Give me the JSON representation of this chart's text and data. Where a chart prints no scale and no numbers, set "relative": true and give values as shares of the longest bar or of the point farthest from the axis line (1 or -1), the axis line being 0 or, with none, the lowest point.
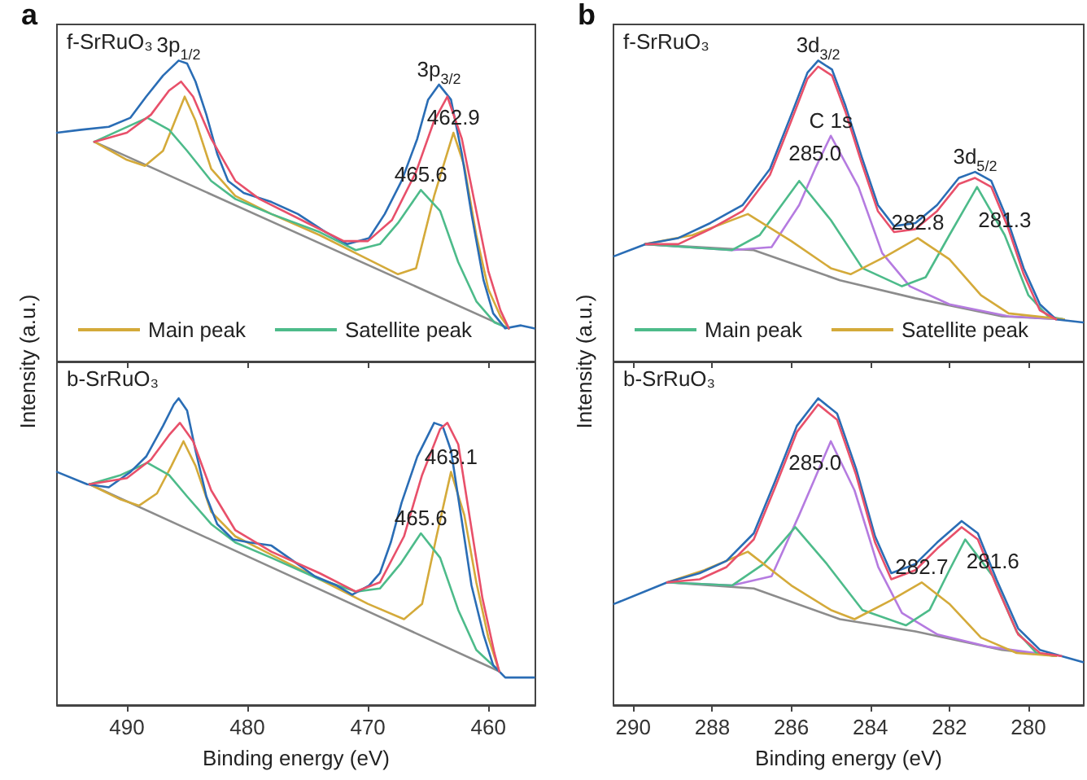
{
  "chart_data": [
    {
      "type": "line",
      "title": "a",
      "subtitle": "f-SrRuO₃",
      "relative": true,
      "xlim": [
        495.8,
        456.1
      ],
      "xticks": [
        490,
        480,
        470,
        460
      ],
      "tick_labels": false,
      "legend": "bottom left",
      "series": [
        {
          "color": "#8c8c8c",
          "x": [
            492.7,
            458.3
          ],
          "values": [
            0.73,
            0.11
          ]
        },
        {
          "name": "Main peak",
          "color": "#d4aa3a",
          "x": [
            492.7,
            490,
            488.5,
            487,
            486,
            485.2,
            484.3,
            483,
            481,
            478,
            474,
            470,
            467.5,
            466,
            464.5,
            462.9,
            462,
            461,
            460,
            459,
            458.3
          ],
          "values": [
            0.73,
            0.67,
            0.65,
            0.7,
            0.8,
            0.88,
            0.8,
            0.64,
            0.55,
            0.49,
            0.42,
            0.34,
            0.29,
            0.31,
            0.55,
            0.76,
            0.65,
            0.42,
            0.24,
            0.15,
            0.11
          ]
        },
        {
          "name": "Satellite peak",
          "color": "#4dbb8a",
          "x": [
            492.7,
            490.5,
            488.3,
            486.5,
            485,
            483,
            481,
            478,
            474,
            471,
            469,
            467.5,
            465.6,
            464,
            462.5,
            461,
            459.5,
            458.3
          ],
          "values": [
            0.73,
            0.77,
            0.81,
            0.77,
            0.7,
            0.6,
            0.54,
            0.49,
            0.43,
            0.37,
            0.39,
            0.46,
            0.57,
            0.5,
            0.33,
            0.2,
            0.13,
            0.11
          ]
        },
        {
          "color": "#2a6db5",
          "x": [
            495.8,
            493.8,
            491.5,
            489.7,
            488.4,
            487.0,
            485.7,
            485.0,
            484.3,
            483.4,
            482.5,
            481.6,
            480.3,
            478.0,
            475.8,
            473.5,
            471.7,
            469.9,
            468.6,
            467.2,
            465.9,
            465.0,
            464.1,
            463.1,
            462.2,
            461.4,
            460.4,
            459.6,
            458.6,
            457.3,
            456.2
          ],
          "values": [
            0.76,
            0.77,
            0.78,
            0.81,
            0.88,
            0.95,
            1.0,
            0.99,
            0.93,
            0.82,
            0.69,
            0.6,
            0.56,
            0.53,
            0.49,
            0.43,
            0.39,
            0.41,
            0.49,
            0.6,
            0.74,
            0.87,
            0.92,
            0.87,
            0.69,
            0.49,
            0.27,
            0.16,
            0.11,
            0.12,
            0.11
          ]
        },
        {
          "color": "#e8506a",
          "x": [
            492.7,
            490,
            488,
            486.5,
            485.5,
            484.5,
            483,
            481,
            479,
            475,
            472,
            470,
            468,
            466,
            464.5,
            463.4,
            462.2,
            461,
            460,
            459,
            458.3
          ],
          "values": [
            0.73,
            0.76,
            0.82,
            0.9,
            0.93,
            0.88,
            0.74,
            0.6,
            0.54,
            0.46,
            0.4,
            0.4,
            0.47,
            0.63,
            0.8,
            0.88,
            0.74,
            0.5,
            0.3,
            0.17,
            0.11
          ]
        }
      ],
      "annotations": [
        {
          "text": "3p$_{1/2}$",
          "x": 485.7,
          "y": 1.0
        },
        {
          "text": "3p$_{3/2}$",
          "x": 464.1,
          "y": 0.92
        },
        {
          "text": "465.6",
          "x": 465.6,
          "y": 0.57
        },
        {
          "text": "462.9",
          "x": 462.9,
          "y": 0.76
        }
      ]
    },
    {
      "type": "line",
      "subtitle": "b-SrRuO₃",
      "relative": true,
      "xlim": [
        495.8,
        456.1
      ],
      "xticks": [
        490,
        480,
        470,
        460
      ],
      "tick_labels": "x",
      "xlabel": "Binding energy (eV)",
      "ylabel": "Intensity (a.u.)",
      "series": [
        {
          "color": "#8c8c8c",
          "x": [
            493.1,
            459.1
          ],
          "values": [
            0.72,
            0.11
          ]
        },
        {
          "color": "#d4aa3a",
          "x": [
            493.1,
            490.5,
            489,
            487.5,
            486.3,
            485.3,
            484.3,
            483,
            481,
            478,
            474,
            470,
            467,
            465.5,
            464.3,
            463.1,
            462,
            461,
            460,
            459.1
          ],
          "values": [
            0.72,
            0.67,
            0.65,
            0.69,
            0.78,
            0.86,
            0.78,
            0.63,
            0.55,
            0.49,
            0.41,
            0.33,
            0.28,
            0.33,
            0.55,
            0.76,
            0.62,
            0.4,
            0.22,
            0.11
          ]
        },
        {
          "color": "#4dbb8a",
          "x": [
            493.1,
            490.5,
            488.3,
            486.5,
            485,
            483,
            481,
            478,
            474,
            471,
            469,
            467.3,
            465.6,
            464,
            462.5,
            461,
            459.1
          ],
          "values": [
            0.72,
            0.75,
            0.79,
            0.75,
            0.68,
            0.59,
            0.53,
            0.48,
            0.41,
            0.37,
            0.38,
            0.46,
            0.56,
            0.48,
            0.31,
            0.18,
            0.11
          ]
        },
        {
          "color": "#2a6db5",
          "x": [
            495.8,
            493.3,
            491.5,
            489.7,
            488.4,
            487.0,
            486.1,
            485.7,
            485.0,
            484.3,
            483.4,
            482.5,
            481.2,
            479.8,
            478.0,
            476.2,
            474.4,
            472.6,
            471.3,
            469.9,
            469.0,
            468.1,
            467.2,
            465.9,
            464.5,
            463.8,
            463.1,
            462.2,
            461.4,
            460.4,
            459.6,
            458.6,
            457.3,
            456.2
          ],
          "values": [
            0.76,
            0.72,
            0.71,
            0.76,
            0.81,
            0.91,
            0.98,
            1.0,
            0.96,
            0.83,
            0.68,
            0.59,
            0.54,
            0.53,
            0.52,
            0.47,
            0.42,
            0.39,
            0.36,
            0.39,
            0.43,
            0.53,
            0.66,
            0.81,
            0.92,
            0.91,
            0.83,
            0.6,
            0.39,
            0.23,
            0.13,
            0.09,
            0.09,
            0.09
          ]
        },
        {
          "color": "#e8506a",
          "x": [
            493.1,
            490,
            488,
            486.5,
            485.6,
            484.5,
            483,
            481,
            478,
            474,
            471,
            469,
            467,
            465.5,
            464,
            463.4,
            462.5,
            461.5,
            460.5,
            459.5,
            459.1
          ],
          "values": [
            0.72,
            0.74,
            0.8,
            0.88,
            0.92,
            0.86,
            0.7,
            0.57,
            0.5,
            0.43,
            0.37,
            0.4,
            0.55,
            0.75,
            0.9,
            0.92,
            0.85,
            0.6,
            0.35,
            0.17,
            0.11
          ]
        }
      ],
      "annotations": [
        {
          "text": "465.6",
          "x": 465.6,
          "y": 0.56
        },
        {
          "text": "463.1",
          "x": 463.1,
          "y": 0.76
        }
      ]
    },
    {
      "type": "line",
      "title": "b",
      "subtitle": "f-SrRuO₃",
      "relative": true,
      "xlim": [
        290.5,
        278.6
      ],
      "xticks": [
        290,
        288,
        286,
        284,
        282,
        280
      ],
      "tick_labels": false,
      "legend": "bottom left",
      "series": [
        {
          "color": "#8c8c8c",
          "x": [
            289.7,
            286.95,
            284.77,
            282.86,
            280.67,
            279.1
          ],
          "values": [
            0.39,
            0.37,
            0.27,
            0.21,
            0.15,
            0.14
          ]
        },
        {
          "color": "#b57be0",
          "x": [
            289.7,
            287.5,
            286.5,
            285.8,
            285.4,
            285.0,
            284.3,
            283.7,
            283.0,
            282.0,
            280.5,
            279.1
          ],
          "values": [
            0.39,
            0.37,
            0.38,
            0.52,
            0.64,
            0.75,
            0.58,
            0.36,
            0.25,
            0.19,
            0.15,
            0.14
          ]
        },
        {
          "name": "Main peak",
          "color": "#4dbb8a",
          "x": [
            289.7,
            287.5,
            286.8,
            285.8,
            285.0,
            284.2,
            283.2,
            282.6,
            282.0,
            281.3,
            280.6,
            280.0,
            279.5,
            279.1
          ],
          "values": [
            0.39,
            0.37,
            0.42,
            0.6,
            0.47,
            0.31,
            0.25,
            0.28,
            0.42,
            0.58,
            0.42,
            0.22,
            0.15,
            0.14
          ]
        },
        {
          "name": "Satellite peak",
          "color": "#d4aa3a",
          "x": [
            289.7,
            288.5,
            287.1,
            286.0,
            285.0,
            284.5,
            283.6,
            282.8,
            282.0,
            281.2,
            280.5,
            279.1
          ],
          "values": [
            0.39,
            0.42,
            0.49,
            0.4,
            0.31,
            0.29,
            0.35,
            0.41,
            0.34,
            0.22,
            0.16,
            0.14
          ]
        },
        {
          "color": "#2a6db5",
          "x": [
            290.48,
            289.68,
            288.86,
            288.05,
            287.23,
            286.54,
            286.0,
            285.59,
            285.32,
            284.97,
            284.63,
            284.22,
            283.81,
            283.4,
            282.86,
            282.31,
            281.76,
            281.35,
            280.94,
            280.53,
            280.12,
            279.71,
            279.3,
            278.62
          ],
          "values": [
            0.35,
            0.39,
            0.41,
            0.46,
            0.52,
            0.64,
            0.82,
            0.96,
            1.0,
            0.97,
            0.85,
            0.68,
            0.52,
            0.45,
            0.46,
            0.52,
            0.61,
            0.63,
            0.6,
            0.47,
            0.31,
            0.19,
            0.14,
            0.13
          ]
        },
        {
          "color": "#e8506a",
          "x": [
            289.68,
            288.86,
            288.05,
            287.23,
            286.54,
            286.0,
            285.59,
            285.32,
            284.97,
            284.63,
            284.22,
            283.81,
            283.4,
            282.86,
            282.31,
            281.76,
            281.35,
            280.94,
            280.53,
            280.12,
            279.71,
            279.3
          ],
          "values": [
            0.39,
            0.39,
            0.44,
            0.5,
            0.62,
            0.8,
            0.94,
            0.98,
            0.95,
            0.83,
            0.66,
            0.5,
            0.43,
            0.44,
            0.5,
            0.59,
            0.61,
            0.58,
            0.45,
            0.29,
            0.17,
            0.14
          ]
        }
      ],
      "annotations": [
        {
          "text": "3d$_{3/2}$",
          "x": 285.32,
          "y": 1.0
        },
        {
          "text": "C 1s",
          "x": 285.0,
          "y": 0.75
        },
        {
          "text": "285.0",
          "x": 285.4,
          "y": 0.64
        },
        {
          "text": "3d$_{5/2}$",
          "x": 281.35,
          "y": 0.63
        },
        {
          "text": "281.3",
          "x": 280.6,
          "y": 0.42
        },
        {
          "text": "282.8",
          "x": 282.8,
          "y": 0.41
        }
      ]
    },
    {
      "type": "line",
      "subtitle": "b-SrRuO₃",
      "relative": true,
      "xlim": [
        290.5,
        278.6
      ],
      "xticks": [
        290,
        288,
        286,
        284,
        282,
        280
      ],
      "tick_labels": "x",
      "xlabel": "Binding energy (eV)",
      "ylabel": "Intensity (a.u.)",
      "series": [
        {
          "color": "#8c8c8c",
          "x": [
            289.14,
            286.95,
            284.77,
            282.86,
            280.67,
            279.3
          ],
          "values": [
            0.4,
            0.38,
            0.28,
            0.24,
            0.18,
            0.16
          ]
        },
        {
          "color": "#b57be0",
          "x": [
            289.14,
            287.5,
            286.5,
            285.8,
            285.4,
            285.0,
            284.4,
            283.8,
            283.2,
            282.3,
            281.0,
            279.3
          ],
          "values": [
            0.4,
            0.39,
            0.42,
            0.62,
            0.74,
            0.86,
            0.7,
            0.45,
            0.3,
            0.23,
            0.19,
            0.16
          ]
        },
        {
          "color": "#4dbb8a",
          "x": [
            289.14,
            287.5,
            286.7,
            285.9,
            285.1,
            284.2,
            283.1,
            282.5,
            282.0,
            281.6,
            280.9,
            280.3,
            279.8,
            279.3
          ],
          "values": [
            0.4,
            0.39,
            0.46,
            0.58,
            0.46,
            0.31,
            0.26,
            0.31,
            0.44,
            0.54,
            0.42,
            0.24,
            0.17,
            0.16
          ]
        },
        {
          "color": "#d4aa3a",
          "x": [
            289.14,
            288.2,
            287.1,
            286.0,
            285.0,
            284.4,
            283.5,
            282.7,
            282.0,
            281.2,
            280.3,
            279.3
          ],
          "values": [
            0.4,
            0.44,
            0.5,
            0.39,
            0.31,
            0.28,
            0.34,
            0.4,
            0.33,
            0.22,
            0.17,
            0.16
          ]
        },
        {
          "color": "#2a6db5",
          "x": [
            290.48,
            289.14,
            288.32,
            287.64,
            286.95,
            286.41,
            285.86,
            285.32,
            284.84,
            284.36,
            283.88,
            283.47,
            282.86,
            282.31,
            281.69,
            281.28,
            280.81,
            280.26,
            279.71,
            279.17,
            278.62
          ],
          "values": [
            0.33,
            0.4,
            0.43,
            0.47,
            0.56,
            0.73,
            0.91,
            1.0,
            0.95,
            0.77,
            0.55,
            0.43,
            0.46,
            0.53,
            0.6,
            0.56,
            0.41,
            0.25,
            0.18,
            0.16,
            0.14
          ]
        },
        {
          "color": "#e8506a",
          "x": [
            289.14,
            288.32,
            287.64,
            286.95,
            286.41,
            285.86,
            285.32,
            284.84,
            284.36,
            283.88,
            283.47,
            282.86,
            282.31,
            281.69,
            281.28,
            280.81,
            280.26,
            279.71,
            279.17
          ],
          "values": [
            0.4,
            0.41,
            0.45,
            0.54,
            0.71,
            0.89,
            0.98,
            0.93,
            0.75,
            0.53,
            0.41,
            0.44,
            0.51,
            0.58,
            0.54,
            0.39,
            0.23,
            0.17,
            0.16
          ]
        }
      ],
      "annotations": [
        {
          "text": "285.0",
          "x": 285.4,
          "y": 0.74
        },
        {
          "text": "282.7",
          "x": 282.7,
          "y": 0.4
        },
        {
          "text": "281.6",
          "x": 280.9,
          "y": 0.42
        }
      ]
    }
  ]
}
